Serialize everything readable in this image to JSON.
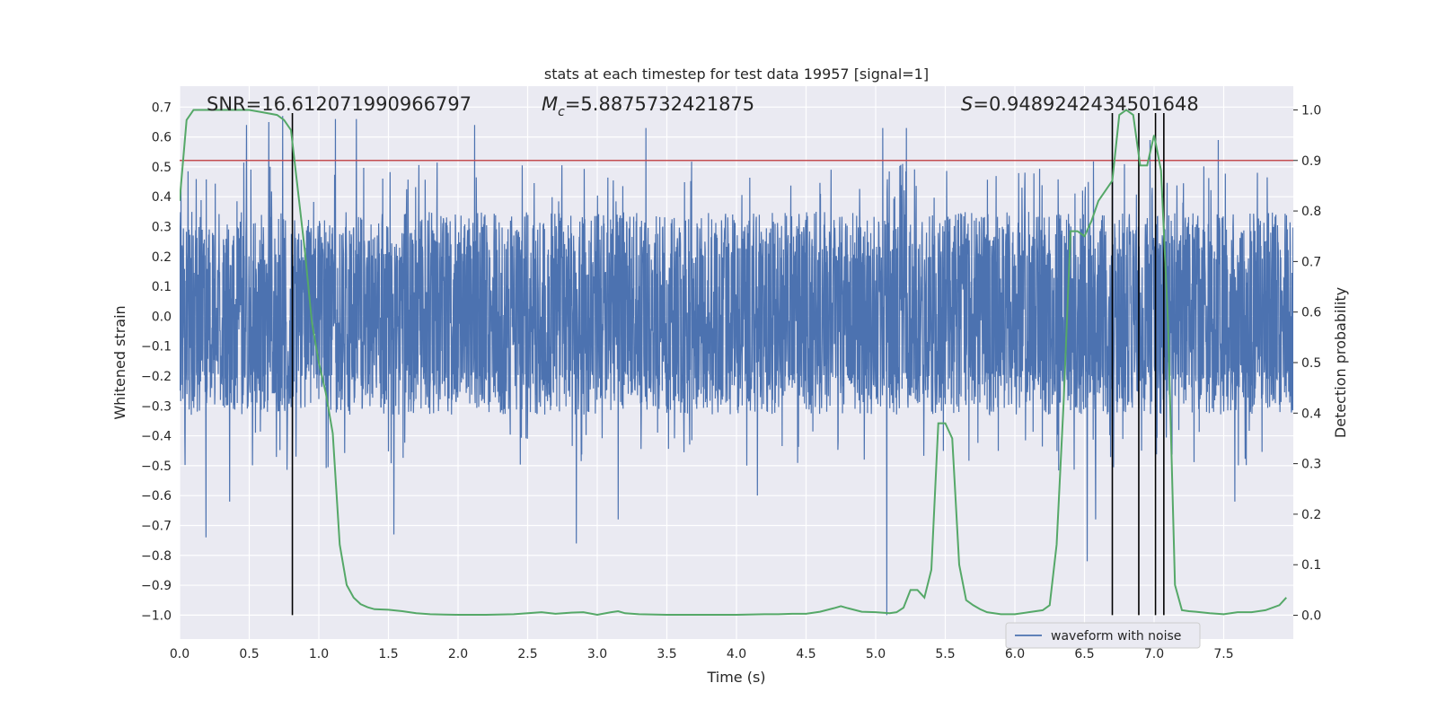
{
  "chart_data": {
    "type": "line",
    "title": "stats at each timestep for test data 19957 [signal=1]",
    "xlabel": "Time (s)",
    "ylabel": "Whitened strain",
    "y2label": "Detection probability",
    "xlim": [
      0.0,
      8.0
    ],
    "ylim": [
      -1.08,
      0.77
    ],
    "y2lim": [
      -0.047,
      1.047
    ],
    "xticks": [
      "0.0",
      "0.5",
      "1.0",
      "1.5",
      "2.0",
      "2.5",
      "3.0",
      "3.5",
      "4.0",
      "4.5",
      "5.0",
      "5.5",
      "6.0",
      "6.5",
      "7.0",
      "7.5"
    ],
    "yticks": [
      "0.7",
      "0.6",
      "0.5",
      "0.4",
      "0.3",
      "0.2",
      "0.1",
      "0.0",
      "−0.1",
      "−0.2",
      "−0.3",
      "−0.4",
      "−0.5",
      "−0.6",
      "−0.7",
      "−0.8",
      "−0.9",
      "−1.0"
    ],
    "y2ticks": [
      "1.0",
      "0.9",
      "0.8",
      "0.7",
      "0.6",
      "0.5",
      "0.4",
      "0.3",
      "0.2",
      "0.1",
      "0.0"
    ],
    "grid": true,
    "legend": {
      "placement": "lower-right",
      "entries": [
        "waveform with noise"
      ]
    },
    "annotations": {
      "snr": "SNR=16.612071990966797",
      "mc_symbol": "M",
      "mc_sub": "c",
      "mc_value": "=5.8875732421875",
      "s_symbol": "S",
      "s_value": "=0.9489242434501648"
    },
    "threshold": {
      "value": 0.9,
      "axis": "y2",
      "color": "#c44e52"
    },
    "vlines": {
      "x": [
        0.81,
        6.7,
        6.89,
        7.01,
        7.07
      ],
      "ymin": -1.0,
      "ymax": 0.68,
      "color": "#000000"
    },
    "colors": {
      "waveform": "#4c72b0",
      "probability": "#55a868",
      "background": "#eaeaf2"
    },
    "series": [
      {
        "name": "waveform with noise",
        "axis": "y",
        "samples": 4096,
        "envelope_typical": [
          -0.33,
          0.35
        ],
        "peaks": [
          [
            0.48,
            0.64
          ],
          [
            0.64,
            0.65
          ],
          [
            0.74,
            0.67
          ],
          [
            1.12,
            0.66
          ],
          [
            1.27,
            0.66
          ],
          [
            2.12,
            0.64
          ],
          [
            2.85,
            0.64
          ],
          [
            3.35,
            0.63
          ],
          [
            5.05,
            0.63
          ],
          [
            5.22,
            0.63
          ],
          [
            6.97,
            0.59
          ],
          [
            7.46,
            0.59
          ],
          [
            0.19,
            -0.74
          ],
          [
            0.36,
            -0.62
          ],
          [
            1.54,
            -0.73
          ],
          [
            2.85,
            -0.76
          ],
          [
            3.15,
            -0.68
          ],
          [
            4.15,
            -0.6
          ],
          [
            5.08,
            -1.0
          ],
          [
            6.52,
            -0.82
          ],
          [
            6.58,
            -0.68
          ],
          [
            7.58,
            -0.62
          ]
        ]
      },
      {
        "name": "",
        "axis": "y2",
        "x": [
          0.0,
          0.05,
          0.1,
          0.2,
          0.3,
          0.4,
          0.5,
          0.6,
          0.7,
          0.75,
          0.8,
          0.85,
          0.9,
          0.95,
          1.0,
          1.05,
          1.1,
          1.15,
          1.2,
          1.25,
          1.3,
          1.35,
          1.4,
          1.5,
          1.6,
          1.7,
          1.8,
          1.9,
          2.0,
          2.2,
          2.4,
          2.5,
          2.6,
          2.7,
          2.8,
          2.9,
          3.0,
          3.1,
          3.15,
          3.2,
          3.3,
          3.5,
          3.7,
          3.9,
          4.0,
          4.2,
          4.3,
          4.4,
          4.5,
          4.6,
          4.7,
          4.75,
          4.8,
          4.9,
          5.0,
          5.1,
          5.15,
          5.2,
          5.25,
          5.3,
          5.35,
          5.4,
          5.45,
          5.5,
          5.55,
          5.6,
          5.65,
          5.7,
          5.75,
          5.8,
          5.9,
          6.0,
          6.1,
          6.2,
          6.25,
          6.3,
          6.35,
          6.4,
          6.45,
          6.5,
          6.55,
          6.6,
          6.65,
          6.7,
          6.75,
          6.8,
          6.85,
          6.9,
          6.95,
          7.0,
          7.05,
          7.1,
          7.15,
          7.2,
          7.25,
          7.3,
          7.4,
          7.5,
          7.6,
          7.7,
          7.8,
          7.9,
          7.95
        ],
        "values": [
          0.82,
          0.98,
          1.0,
          1.0,
          1.0,
          1.0,
          1.0,
          0.995,
          0.99,
          0.98,
          0.96,
          0.84,
          0.72,
          0.58,
          0.5,
          0.44,
          0.36,
          0.14,
          0.06,
          0.035,
          0.022,
          0.016,
          0.012,
          0.011,
          0.008,
          0.004,
          0.002,
          0.0015,
          0.001,
          0.001,
          0.002,
          0.004,
          0.006,
          0.003,
          0.005,
          0.006,
          0.001,
          0.006,
          0.008,
          0.004,
          0.002,
          0.001,
          0.001,
          0.001,
          0.001,
          0.002,
          0.002,
          0.003,
          0.003,
          0.007,
          0.014,
          0.018,
          0.014,
          0.007,
          0.006,
          0.004,
          0.006,
          0.015,
          0.05,
          0.05,
          0.035,
          0.09,
          0.38,
          0.38,
          0.35,
          0.1,
          0.03,
          0.02,
          0.012,
          0.006,
          0.002,
          0.002,
          0.006,
          0.01,
          0.02,
          0.14,
          0.42,
          0.76,
          0.76,
          0.75,
          0.78,
          0.82,
          0.84,
          0.86,
          0.99,
          1.0,
          0.99,
          0.89,
          0.89,
          0.95,
          0.88,
          0.58,
          0.06,
          0.01,
          0.008,
          0.007,
          0.004,
          0.002,
          0.006,
          0.006,
          0.01,
          0.02,
          0.035
        ]
      }
    ]
  }
}
